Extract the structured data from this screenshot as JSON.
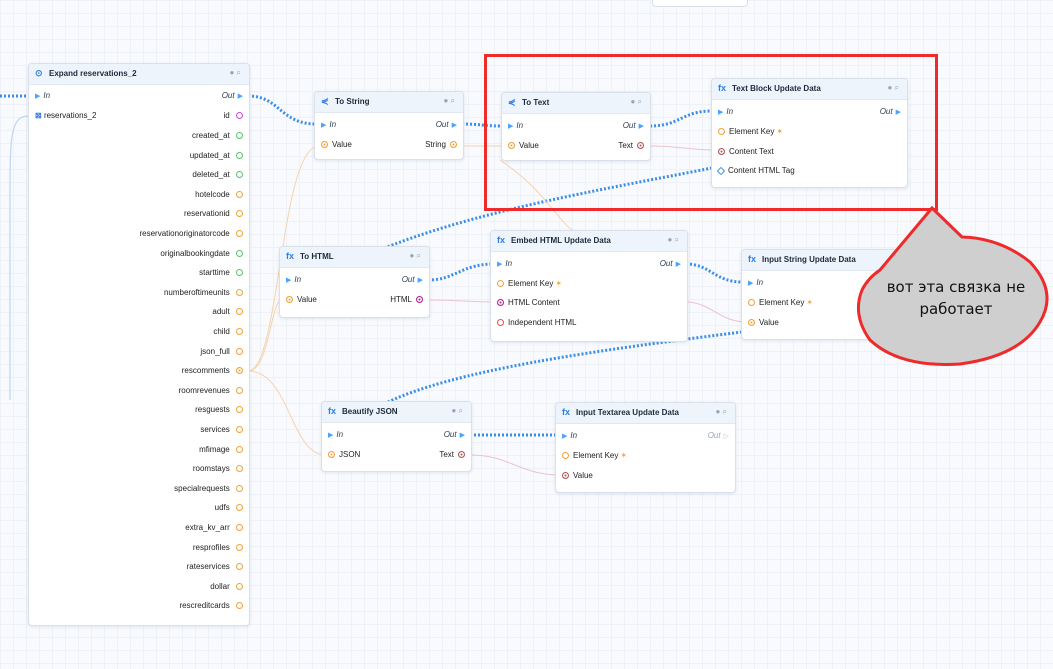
{
  "nodes": {
    "expand": {
      "title": "Expand reservations_2",
      "in_label": "In",
      "out_label": "Out",
      "first_field": "reservations_2",
      "first_field_type": "id",
      "fields": [
        "created_at",
        "updated_at",
        "deleted_at",
        "hotelcode",
        "reservationid",
        "reservationoriginatorcode",
        "originalbookingdate",
        "starttime",
        "numberoftimeunits",
        "adult",
        "child",
        "json_full",
        "rescomments",
        "roomrevenues",
        "resguests",
        "services",
        "mfimage",
        "roomstays",
        "specialrequests",
        "udfs",
        "extra_kv_arr",
        "resprofiles",
        "rateservices",
        "dollar",
        "rescreditcards"
      ]
    },
    "to_string": {
      "title": "To String",
      "in_label": "In",
      "out_label": "Out",
      "input": "Value",
      "output": "String"
    },
    "to_text": {
      "title": "To Text",
      "in_label": "In",
      "out_label": "Out",
      "input": "Value",
      "output": "Text"
    },
    "text_block": {
      "title": "Text Block Update Data",
      "in_label": "In",
      "out_label": "Out",
      "inputs": [
        "Element Key",
        "Content Text",
        "Content HTML Tag"
      ]
    },
    "to_html": {
      "title": "To HTML",
      "in_label": "In",
      "out_label": "Out",
      "input": "Value",
      "output": "HTML"
    },
    "embed_html": {
      "title": "Embed HTML Update Data",
      "in_label": "In",
      "out_label": "Out",
      "inputs": [
        "Element Key",
        "HTML Content",
        "Independent HTML"
      ]
    },
    "input_string": {
      "title": "Input String Update Data",
      "in_label": "In",
      "inputs": [
        "Element Key",
        "Value"
      ]
    },
    "beautify": {
      "title": "Beautify JSON",
      "in_label": "In",
      "out_label": "Out",
      "input": "JSON",
      "output": "Text"
    },
    "textarea": {
      "title": "Input Textarea Update Data",
      "in_label": "In",
      "out_label": "Out",
      "inputs": [
        "Element Key",
        "Value"
      ]
    }
  },
  "annotation": {
    "text": "вот эта связка не работает"
  },
  "icons": {
    "node_icon": "function-icon",
    "header_icons": [
      "info-icon",
      "comment-icon"
    ]
  },
  "colors": {
    "flow_wire": "#3a8ee8",
    "highlight": "#ee2a2a",
    "port_orange": "#f0a13a"
  }
}
